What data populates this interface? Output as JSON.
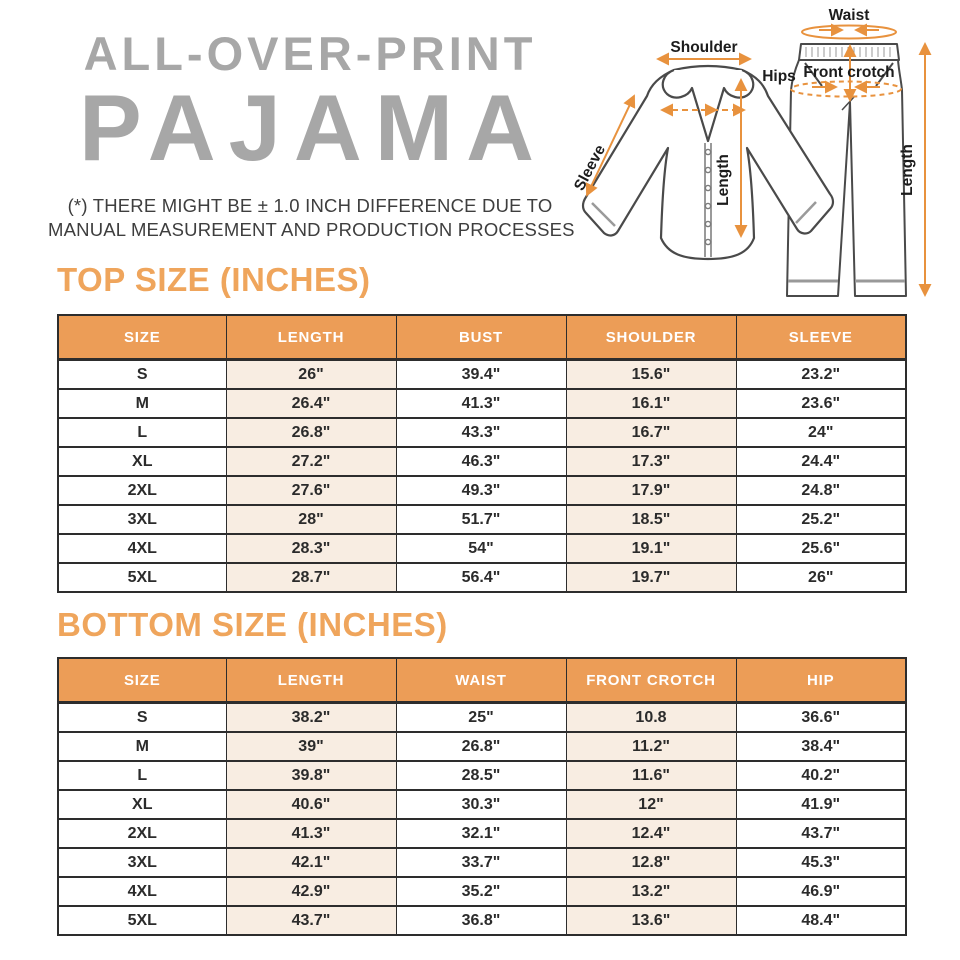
{
  "header": {
    "title_line1": "ALL-OVER-PRINT",
    "title_line2": "PAJAMA",
    "disclaimer_line1": "(*) THERE MIGHT BE ± 1.0 INCH DIFFERENCE DUE TO",
    "disclaimer_line2": "MANUAL MEASUREMENT AND PRODUCTION PROCESSES"
  },
  "diagram": {
    "labels": {
      "shoulder": "Shoulder",
      "sleeve": "Sleeve",
      "top_length": "Length",
      "waist": "Waist",
      "hips": "Hips",
      "front_crotch": "Front crotch",
      "bottom_length": "Length"
    }
  },
  "colors": {
    "accent_orange_header": "#ec9d57",
    "section_title_orange": "#efa55c",
    "arrow_orange": "#e8923e",
    "cell_peach": "#f8ede2",
    "title_gray": "#a7a7a7",
    "text_dark": "#2b2b2b",
    "outline_gray": "#4a4a4a"
  },
  "top_table": {
    "title": "TOP SIZE (INCHES)",
    "columns": [
      "SIZE",
      "LENGTH",
      "BUST",
      "SHOULDER",
      "SLEEVE"
    ],
    "rows": [
      [
        "S",
        "26\"",
        "39.4\"",
        "15.6\"",
        "23.2\""
      ],
      [
        "M",
        "26.4\"",
        "41.3\"",
        "16.1\"",
        "23.6\""
      ],
      [
        "L",
        "26.8\"",
        "43.3\"",
        "16.7\"",
        "24\""
      ],
      [
        "XL",
        "27.2\"",
        "46.3\"",
        "17.3\"",
        "24.4\""
      ],
      [
        "2XL",
        "27.6\"",
        "49.3\"",
        "17.9\"",
        "24.8\""
      ],
      [
        "3XL",
        "28\"",
        "51.7\"",
        "18.5\"",
        "25.2\""
      ],
      [
        "4XL",
        "28.3\"",
        "54\"",
        "19.1\"",
        "25.6\""
      ],
      [
        "5XL",
        "28.7\"",
        "56.4\"",
        "19.7\"",
        "26\""
      ]
    ]
  },
  "bottom_table": {
    "title": "BOTTOM SIZE (INCHES)",
    "columns": [
      "SIZE",
      "LENGTH",
      "WAIST",
      "FRONT CROTCH",
      "HIP"
    ],
    "rows": [
      [
        "S",
        "38.2\"",
        "25\"",
        "10.8",
        "36.6\""
      ],
      [
        "M",
        "39\"",
        "26.8\"",
        "11.2\"",
        "38.4\""
      ],
      [
        "L",
        "39.8\"",
        "28.5\"",
        "11.6\"",
        "40.2\""
      ],
      [
        "XL",
        "40.6\"",
        "30.3\"",
        "12\"",
        "41.9\""
      ],
      [
        "2XL",
        "41.3\"",
        "32.1\"",
        "12.4\"",
        "43.7\""
      ],
      [
        "3XL",
        "42.1\"",
        "33.7\"",
        "12.8\"",
        "45.3\""
      ],
      [
        "4XL",
        "42.9\"",
        "35.2\"",
        "13.2\"",
        "46.9\""
      ],
      [
        "5XL",
        "43.7\"",
        "36.8\"",
        "13.6\"",
        "48.4\""
      ]
    ]
  }
}
